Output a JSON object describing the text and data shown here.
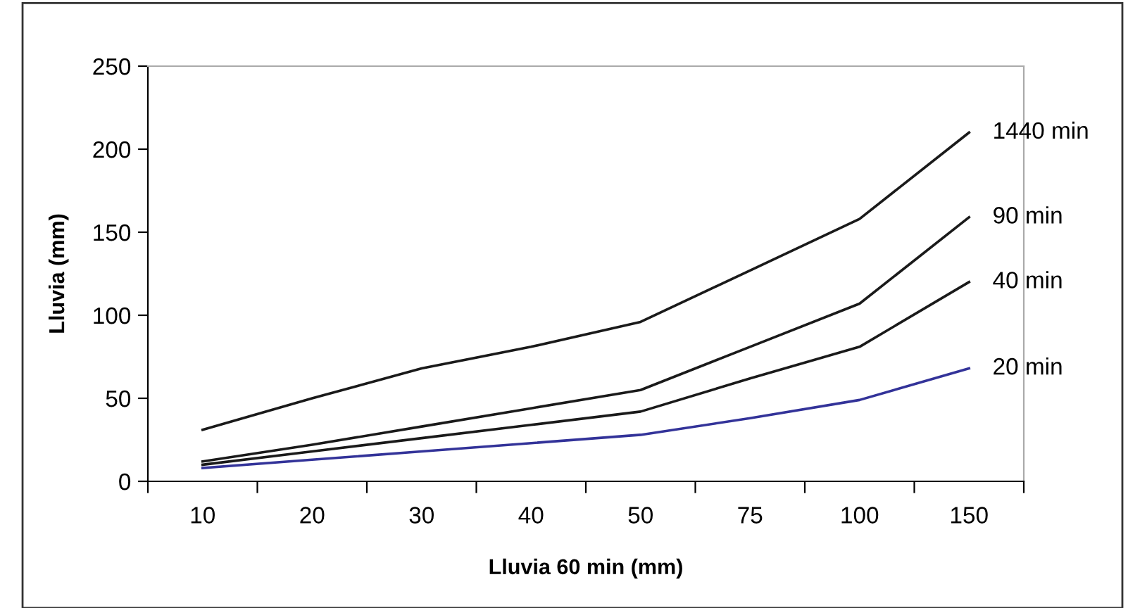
{
  "chart_data": {
    "type": "line",
    "xlabel": "Lluvia 60 min (mm)",
    "ylabel": "Lluvia (mm)",
    "categories": [
      "10",
      "20",
      "30",
      "40",
      "50",
      "75",
      "100",
      "150"
    ],
    "ylim": [
      0,
      250
    ],
    "yticks": [
      0,
      50,
      100,
      150,
      200,
      250
    ],
    "grid": false,
    "legend": false,
    "marker": "none",
    "line_style": "solid",
    "series": [
      {
        "name": "1440 min",
        "color": "#1a1a1a",
        "values": [
          31,
          50,
          68,
          81,
          96,
          127,
          158,
          210
        ]
      },
      {
        "name": "90 min",
        "color": "#1a1a1a",
        "values": [
          12,
          22,
          33,
          44,
          55,
          81,
          107,
          159
        ]
      },
      {
        "name": "40 min",
        "color": "#1a1a1a",
        "values": [
          10,
          18,
          26,
          34,
          42,
          62,
          81,
          120
        ]
      },
      {
        "name": "20 min",
        "color": "#333399",
        "values": [
          8,
          13,
          18,
          23,
          28,
          38,
          49,
          68
        ]
      }
    ]
  }
}
